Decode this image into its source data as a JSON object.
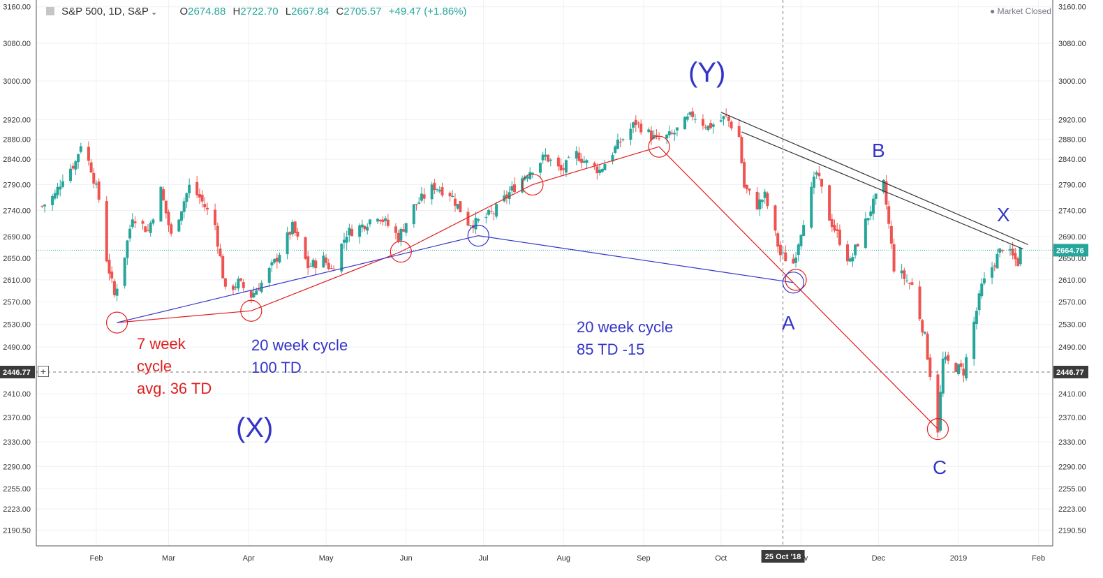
{
  "header": {
    "symbol": "S&P 500, 1D, S&P",
    "chevron_icon": "chevron-down-icon",
    "open_label": "O",
    "open_value": "2674.88",
    "high_label": "H",
    "high_value": "2722.70",
    "low_label": "L",
    "low_value": "2667.84",
    "close_label": "C",
    "close_value": "2705.57",
    "change": "+49.47 (+1.86%)",
    "market_status": "Market Closed",
    "market_status_icon": "dot-icon"
  },
  "plus_button": "+",
  "colors": {
    "up": "#26a69a",
    "down": "#ef5350",
    "annotation_red": "#e11d1d",
    "annotation_blue": "#3434c8",
    "trendline": "#333333",
    "last_price_line": "#26a69a",
    "grid": "#eef0f4"
  },
  "chart_data": {
    "type": "candlestick",
    "instrument": "S&P 500",
    "interval": "1D",
    "y_axis_ticks": [
      "3160.00",
      "3080.00",
      "3000.00",
      "2920.00",
      "2880.00",
      "2840.00",
      "2790.00",
      "2740.00",
      "2690.00",
      "2650.00",
      "2610.00",
      "2570.00",
      "2530.00",
      "2490.00",
      "2410.00",
      "2370.00",
      "2330.00",
      "2290.00",
      "2255.00",
      "2223.00",
      "2190.50"
    ],
    "x_axis_ticks": [
      "Feb",
      "Mar",
      "Apr",
      "May",
      "Jun",
      "Jul",
      "Aug",
      "Sep",
      "Oct",
      "Nov",
      "Dec",
      "2019",
      "Feb"
    ],
    "x_axis_dates": [
      "2018-02-01",
      "2018-03-01",
      "2018-04-01",
      "2018-05-01",
      "2018-06-01",
      "2018-07-01",
      "2018-08-01",
      "2018-09-01",
      "2018-10-01",
      "2018-11-01",
      "2018-12-01",
      "2019-01-01",
      "2019-02-01"
    ],
    "y_scale": "log",
    "last_price": "2664.76",
    "crosshair_price": "2446.77",
    "crosshair_date_label": "25 Oct '18",
    "closes": [
      [
        "2018-01-11",
        2748
      ],
      [
        "2018-01-16",
        2770
      ],
      [
        "2018-01-19",
        2805
      ],
      [
        "2018-01-24",
        2835
      ],
      [
        "2018-01-26",
        2872
      ],
      [
        "2018-01-30",
        2822
      ],
      [
        "2018-02-02",
        2762
      ],
      [
        "2018-02-05",
        2649
      ],
      [
        "2018-02-08",
        2581
      ],
      [
        "2018-02-12",
        2656
      ],
      [
        "2018-02-15",
        2731
      ],
      [
        "2018-02-21",
        2701
      ],
      [
        "2018-02-26",
        2779
      ],
      [
        "2018-03-02",
        2691
      ],
      [
        "2018-03-09",
        2786
      ],
      [
        "2018-03-13",
        2765
      ],
      [
        "2018-03-19",
        2712
      ],
      [
        "2018-03-23",
        2588
      ],
      [
        "2018-03-28",
        2605
      ],
      [
        "2018-04-02",
        2581
      ],
      [
        "2018-04-06",
        2604
      ],
      [
        "2018-04-11",
        2642
      ],
      [
        "2018-04-18",
        2708
      ],
      [
        "2018-04-24",
        2634
      ],
      [
        "2018-04-30",
        2648
      ],
      [
        "2018-05-03",
        2629
      ],
      [
        "2018-05-09",
        2697
      ],
      [
        "2018-05-15",
        2711
      ],
      [
        "2018-05-21",
        2733
      ],
      [
        "2018-05-29",
        2689
      ],
      [
        "2018-06-04",
        2747
      ],
      [
        "2018-06-12",
        2787
      ],
      [
        "2018-06-18",
        2773
      ],
      [
        "2018-06-25",
        2717
      ],
      [
        "2018-06-28",
        2716
      ],
      [
        "2018-07-05",
        2736
      ],
      [
        "2018-07-11",
        2774
      ],
      [
        "2018-07-17",
        2809
      ],
      [
        "2018-07-25",
        2846
      ],
      [
        "2018-07-31",
        2816
      ],
      [
        "2018-08-06",
        2850
      ],
      [
        "2018-08-10",
        2833
      ],
      [
        "2018-08-15",
        2818
      ],
      [
        "2018-08-21",
        2862
      ],
      [
        "2018-08-29",
        2914
      ],
      [
        "2018-09-06",
        2878
      ],
      [
        "2018-09-12",
        2888
      ],
      [
        "2018-09-20",
        2930
      ],
      [
        "2018-09-26",
        2905
      ],
      [
        "2018-10-03",
        2925
      ],
      [
        "2018-10-08",
        2884
      ],
      [
        "2018-10-10",
        2785
      ],
      [
        "2018-10-15",
        2750
      ],
      [
        "2018-10-18",
        2768
      ],
      [
        "2018-10-24",
        2656
      ],
      [
        "2018-10-29",
        2641
      ],
      [
        "2018-11-02",
        2723
      ],
      [
        "2018-11-07",
        2813
      ],
      [
        "2018-11-12",
        2726
      ],
      [
        "2018-11-20",
        2641
      ],
      [
        "2018-11-28",
        2743
      ],
      [
        "2018-12-03",
        2790
      ],
      [
        "2018-12-07",
        2633
      ],
      [
        "2018-12-14",
        2599
      ],
      [
        "2018-12-19",
        2507
      ],
      [
        "2018-12-24",
        2351
      ],
      [
        "2018-12-26",
        2467
      ],
      [
        "2019-01-03",
        2448
      ],
      [
        "2019-01-10",
        2597
      ],
      [
        "2019-01-18",
        2671
      ],
      [
        "2019-01-24",
        2642
      ],
      [
        "2019-01-25",
        2665
      ]
    ],
    "trendlines": [
      {
        "color": "red",
        "points": [
          [
            "2018-02-09",
            2533
          ],
          [
            "2018-04-02",
            2554
          ],
          [
            "2018-05-30",
            2662
          ],
          [
            "2018-07-20",
            2790
          ],
          [
            "2018-09-07",
            2865
          ],
          [
            "2018-12-24",
            2351
          ]
        ]
      },
      {
        "color": "blue",
        "points": [
          [
            "2018-02-09",
            2533
          ],
          [
            "2018-06-29",
            2692
          ],
          [
            "2018-10-29",
            2605
          ]
        ]
      },
      {
        "color": "black",
        "points": [
          [
            "2018-10-01",
            2935
          ],
          [
            "2019-01-28",
            2675
          ]
        ]
      },
      {
        "color": "black",
        "points": [
          [
            "2018-10-09",
            2895
          ],
          [
            "2019-01-26",
            2667
          ]
        ]
      }
    ],
    "cycle_markers": [
      {
        "color": "red",
        "date": "2018-02-09",
        "price": 2533
      },
      {
        "color": "red",
        "date": "2018-04-02",
        "price": 2554
      },
      {
        "color": "red",
        "date": "2018-05-30",
        "price": 2662
      },
      {
        "color": "red",
        "date": "2018-07-20",
        "price": 2790
      },
      {
        "color": "red",
        "date": "2018-09-07",
        "price": 2865
      },
      {
        "color": "red",
        "date": "2018-10-30",
        "price": 2610
      },
      {
        "color": "red",
        "date": "2018-12-24",
        "price": 2351
      },
      {
        "color": "blue",
        "date": "2018-06-29",
        "price": 2692
      },
      {
        "color": "blue",
        "date": "2018-10-29",
        "price": 2605
      }
    ],
    "annotations": [
      {
        "id": "cycle-7w",
        "color": "red",
        "lines": [
          "7 week",
          "cycle",
          "avg. 36 TD"
        ]
      },
      {
        "id": "cycle-20w-a",
        "color": "blue",
        "lines": [
          "20 week cycle",
          "100 TD"
        ]
      },
      {
        "id": "cycle-20w-b",
        "color": "blue",
        "lines": [
          "20 week cycle",
          "85 TD -15"
        ]
      },
      {
        "id": "wave-x-paren",
        "color": "blue",
        "lines": [
          "(X)"
        ]
      },
      {
        "id": "wave-y-paren",
        "color": "blue",
        "lines": [
          "(Y)"
        ]
      },
      {
        "id": "wave-a",
        "color": "blue",
        "lines": [
          "A"
        ]
      },
      {
        "id": "wave-b",
        "color": "blue",
        "lines": [
          "B"
        ]
      },
      {
        "id": "wave-c",
        "color": "blue",
        "lines": [
          "C"
        ]
      },
      {
        "id": "wave-x",
        "color": "blue",
        "lines": [
          "X"
        ]
      }
    ]
  }
}
